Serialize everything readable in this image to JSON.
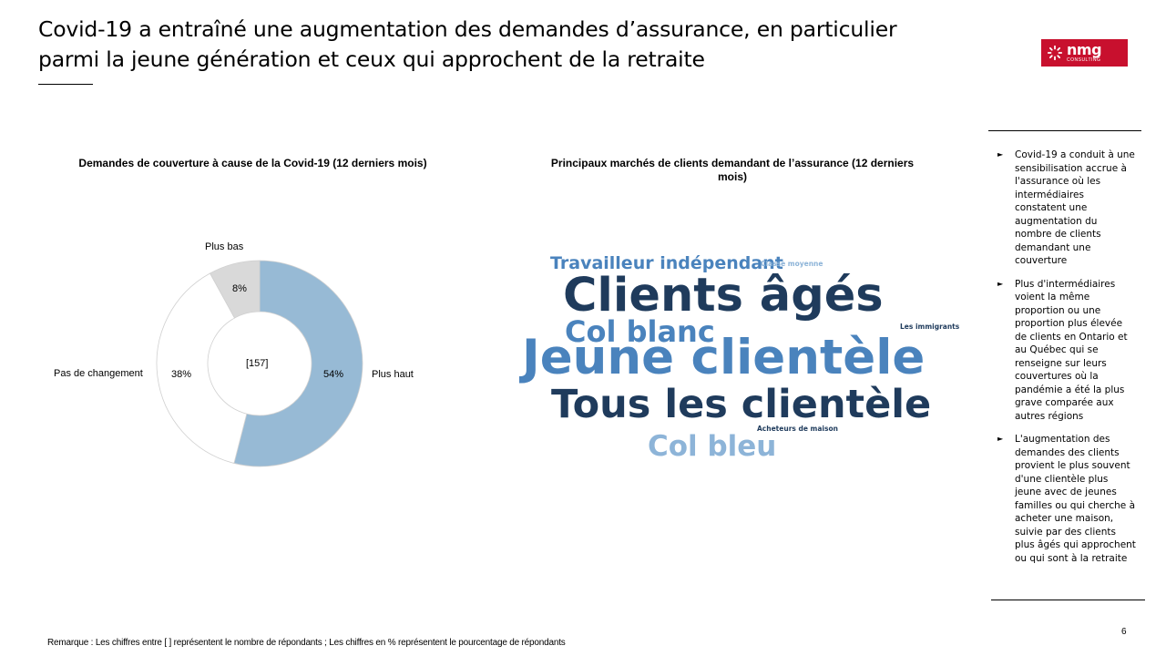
{
  "slide": {
    "title": "Covid-19 a entraîné une augmentation des demandes d’assurance, en particulier parmi la jeune génération et ceux qui approchent de la retraite",
    "logo": {
      "main": "nmg",
      "sub": "CONSULTING"
    },
    "page_number": "6",
    "note": "Remarque : Les chiffres entre [ ] représentent le nombre de répondants ; Les chiffres en % représentent le pourcentage de répondants"
  },
  "donut_chart": {
    "title": "Demandes de couverture à cause de la Covid-19 (12 derniers mois)",
    "center_label": "[157]",
    "colors": {
      "plus_haut": "#97bad5",
      "pas_de_changement": "#ffffff",
      "plus_bas": "#d9d9d9",
      "outline": "#d0d0d0"
    }
  },
  "chart_data": {
    "type": "pie",
    "title": "Demandes de couverture à cause de la Covid-19 (12 derniers mois)",
    "slices": [
      {
        "label": "Plus haut",
        "value": 54,
        "value_label": "54%"
      },
      {
        "label": "Pas de changement",
        "value": 38,
        "value_label": "38%"
      },
      {
        "label": "Plus bas",
        "value": 8,
        "value_label": "8%"
      }
    ],
    "n": "[157]"
  },
  "word_cloud": {
    "title": "Principaux marchés de clients demandant de l’assurance (12 derniers mois)",
    "words": {
      "travailleur": "Travailleur indépendant",
      "classe_moyenne": "Classe moyenne",
      "clients_ages": "Clients âgés",
      "col_blanc": "Col blanc",
      "immigrants": "Les immigrants",
      "jeune": "Jeune clientèle",
      "tous": "Tous les clientèle",
      "acheteurs": "Acheteurs de maison",
      "col_bleu": "Col bleu"
    },
    "colors": {
      "dark": "#1f3b5c",
      "mid": "#4a83bd",
      "light": "#8db4d8"
    }
  },
  "sidebar": {
    "items": [
      "Covid-19 a conduit à une sensibilisation accrue à l'assurance où les intermédiaires constatent une augmentation du nombre de clients demandant une couverture",
      "Plus d'intermédiaires voient la même proportion ou une proportion plus élevée de clients en Ontario et au Québec qui se renseigne sur leurs couvertures où la pandémie a été la plus grave comparée aux autres régions",
      "L'augmentation des demandes des clients provient le plus souvent d'une clientèle plus jeune avec de jeunes familles ou qui cherche à acheter une maison, suivie par des clients plus âgés qui approchent ou qui sont à la retraite"
    ]
  }
}
